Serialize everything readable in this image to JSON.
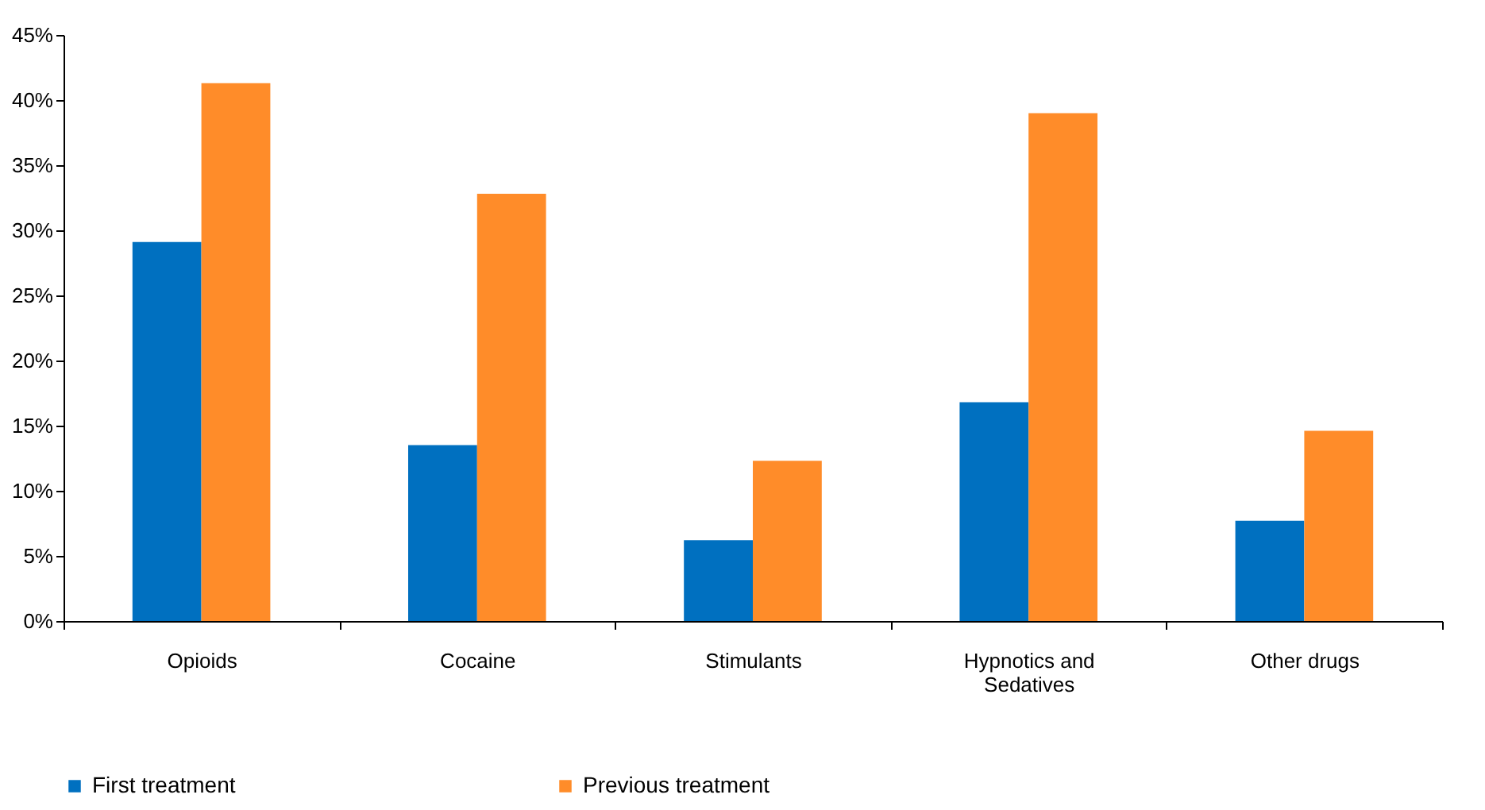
{
  "chart_data": {
    "type": "bar",
    "categories": [
      "Opioids",
      "Cocaine",
      "Stimulants",
      "Hypnotics and Sedatives",
      "Other drugs"
    ],
    "series": [
      {
        "name": "First treatment",
        "color": "#0070c0",
        "values": [
          29.1,
          13.5,
          6.2,
          16.8,
          7.7
        ]
      },
      {
        "name": "Previous treatment",
        "color": "#ff8c29",
        "values": [
          41.3,
          32.8,
          12.3,
          39.0,
          14.6
        ]
      }
    ],
    "ylim": [
      0,
      45
    ],
    "yticks": [
      {
        "value": 0,
        "label": "0%"
      },
      {
        "value": 5,
        "label": "5%"
      },
      {
        "value": 10,
        "label": "10%"
      },
      {
        "value": 15,
        "label": "15%"
      },
      {
        "value": 20,
        "label": "20%"
      },
      {
        "value": 25,
        "label": "25%"
      },
      {
        "value": 30,
        "label": "30%"
      },
      {
        "value": 35,
        "label": "35%"
      },
      {
        "value": 40,
        "label": "40%"
      },
      {
        "value": 45,
        "label": "45%"
      }
    ],
    "grid": false,
    "legend": "bottom"
  }
}
